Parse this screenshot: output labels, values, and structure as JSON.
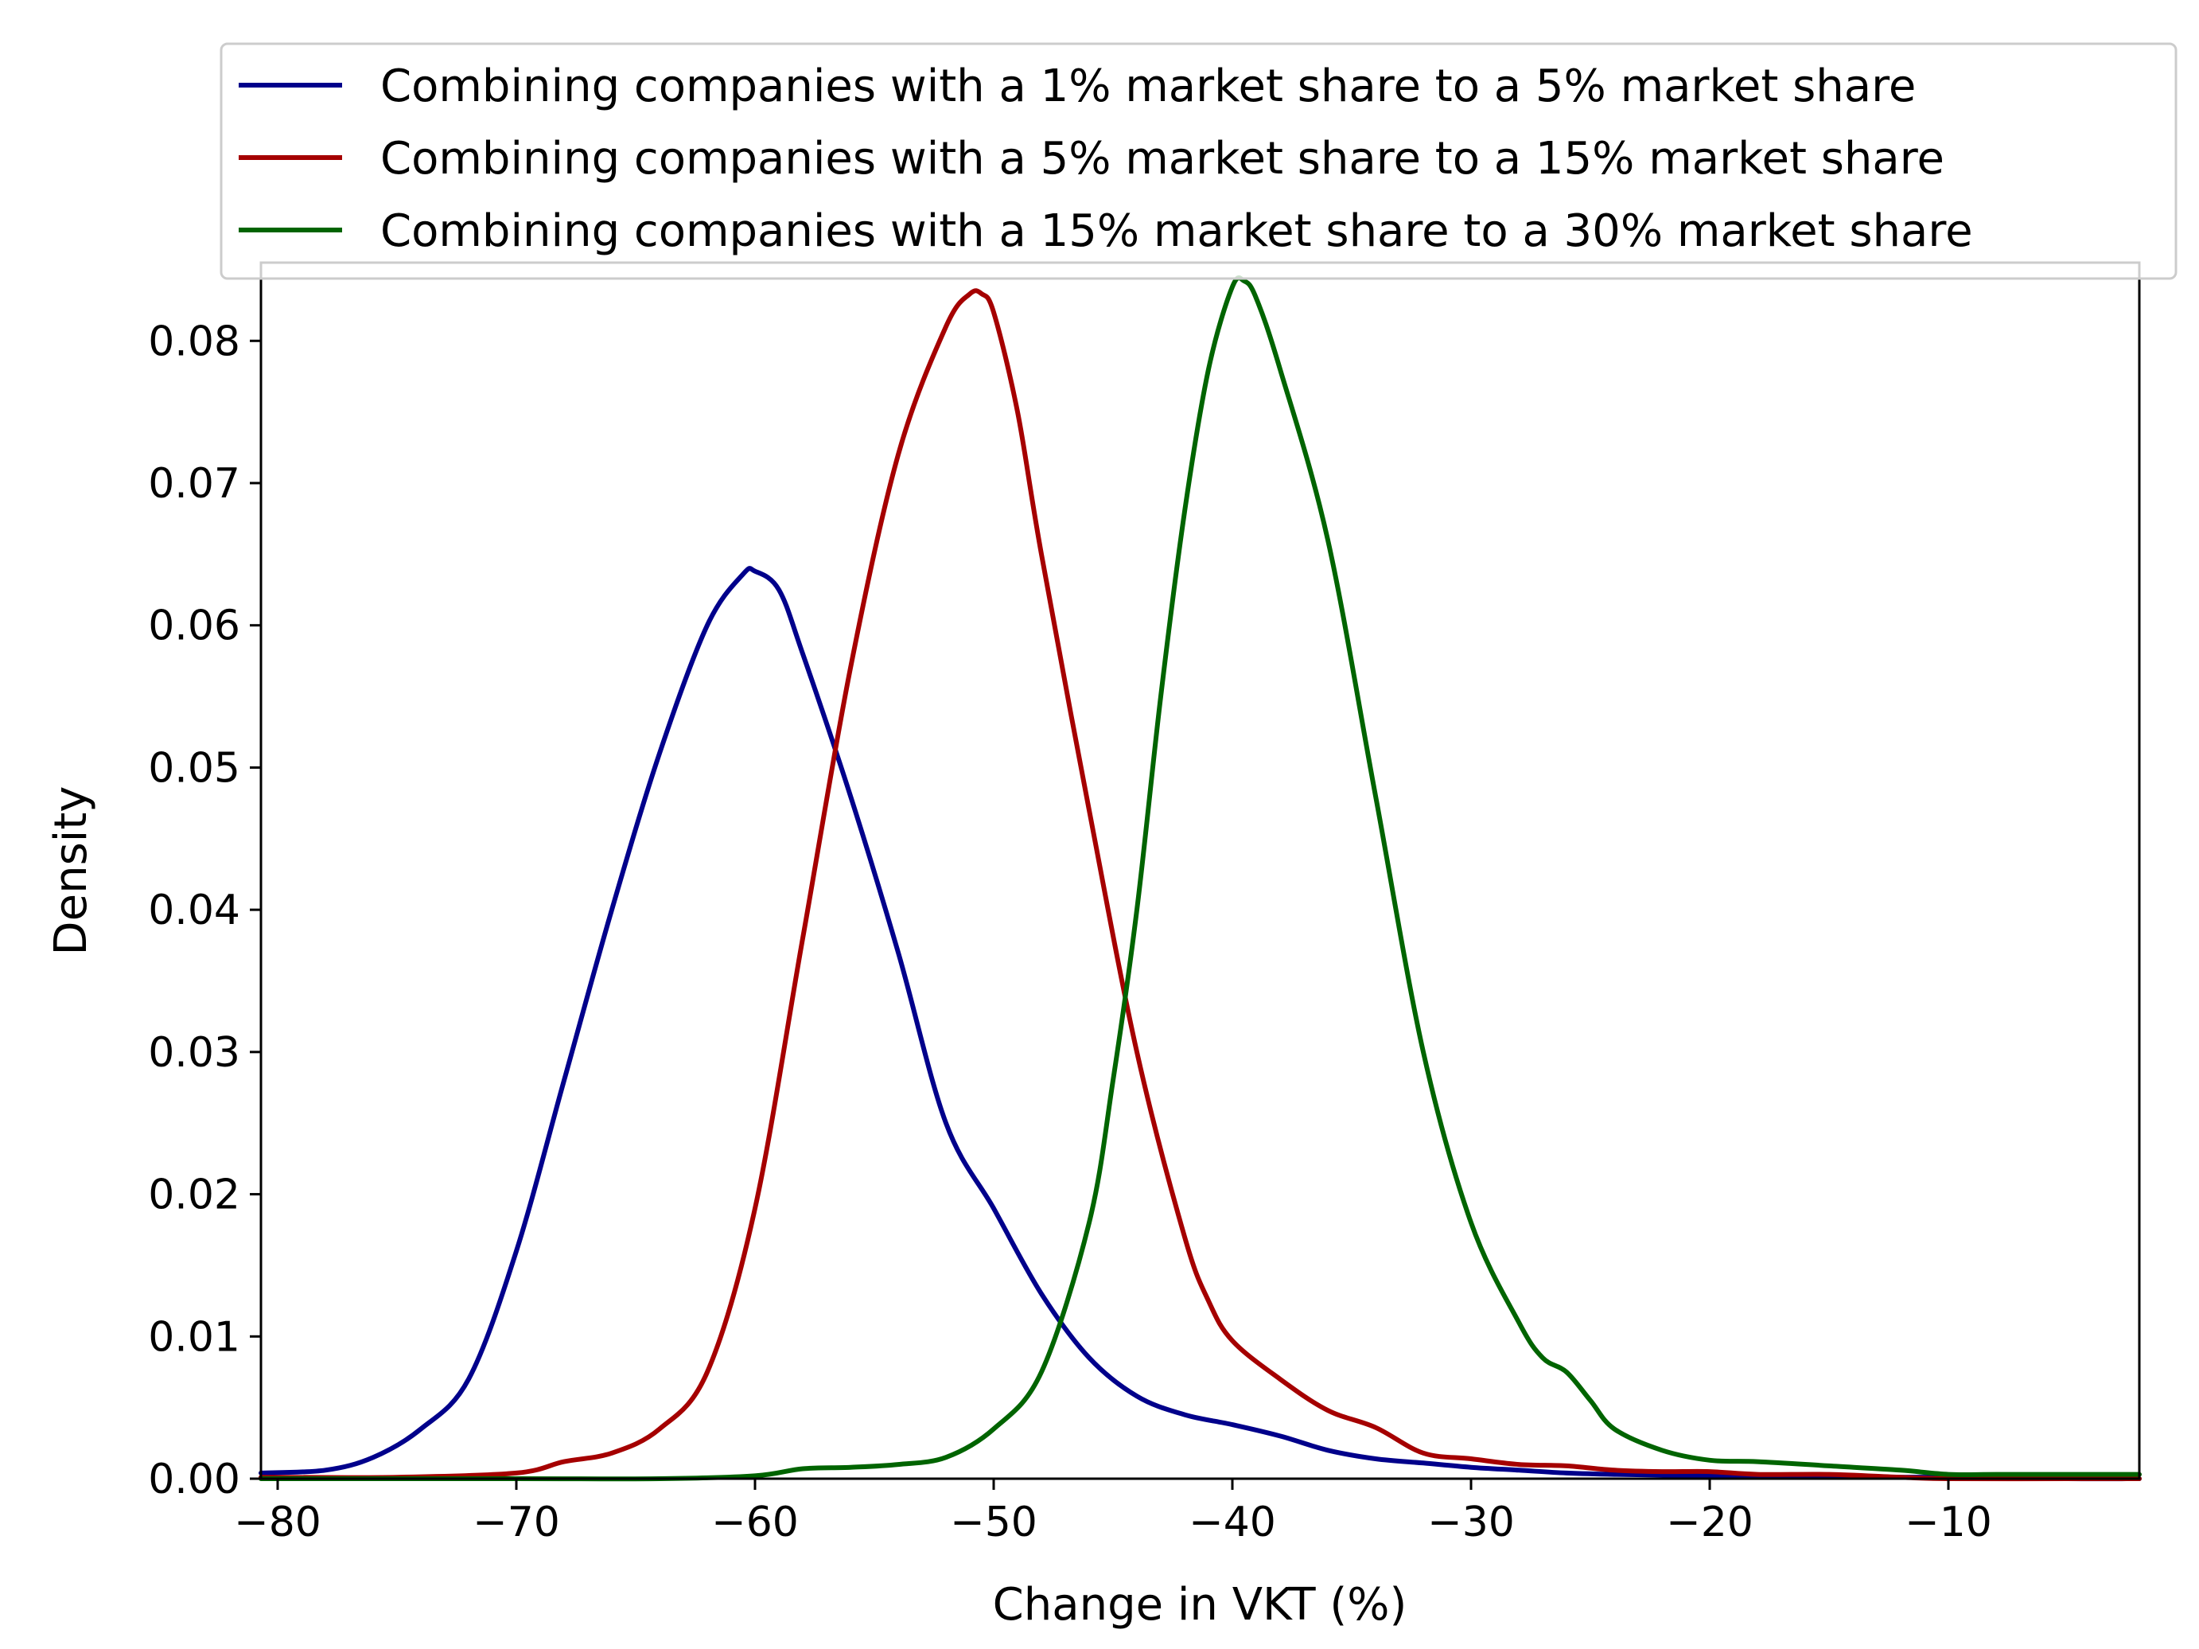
{
  "chart_data": {
    "type": "line",
    "title": "",
    "xlabel": "Change in VKT (%)",
    "ylabel": "Density",
    "xlim": [
      -80.7,
      -2
    ],
    "ylim": [
      0,
      0.0855
    ],
    "xticks": [
      -80,
      -70,
      -60,
      -50,
      -40,
      -30,
      -20,
      -10
    ],
    "xtick_labels": [
      "−80",
      "−70",
      "−60",
      "−50",
      "−40",
      "−30",
      "−20",
      "−10"
    ],
    "yticks": [
      0.0,
      0.01,
      0.02,
      0.03,
      0.04,
      0.05,
      0.06,
      0.07,
      0.08
    ],
    "ytick_labels": [
      "0.00",
      "0.01",
      "0.02",
      "0.03",
      "0.04",
      "0.05",
      "0.06",
      "0.07",
      "0.08"
    ],
    "grid": false,
    "legend_position": "top",
    "series": [
      {
        "name": "Combining companies with a 1% market share to a 5% market share",
        "color": "#00008b",
        "x": [
          -80.7,
          -78,
          -76,
          -74,
          -72,
          -70,
          -68,
          -66,
          -64,
          -62,
          -60.5,
          -60,
          -59,
          -58,
          -56,
          -54,
          -52,
          -50,
          -48,
          -46,
          -44,
          -42,
          -40,
          -38,
          -36,
          -34,
          -32,
          -30,
          -28,
          -26,
          -24,
          -20,
          -15,
          -10,
          -5,
          -2
        ],
        "y": [
          0.0004,
          0.0006,
          0.0015,
          0.0035,
          0.007,
          0.016,
          0.028,
          0.04,
          0.051,
          0.06,
          0.0636,
          0.0638,
          0.0625,
          0.058,
          0.048,
          0.037,
          0.025,
          0.019,
          0.013,
          0.0085,
          0.0058,
          0.0045,
          0.0038,
          0.003,
          0.002,
          0.0014,
          0.0011,
          0.0008,
          0.0006,
          0.0004,
          0.0003,
          0.0002,
          0.0001,
          0.0001,
          0.0,
          0.0
        ]
      },
      {
        "name": "Combining companies with a 5% market share to a 15% market share",
        "color": "#a50000",
        "x": [
          -80.7,
          -75,
          -70,
          -68,
          -66,
          -64,
          -62,
          -60,
          -58,
          -56,
          -54,
          -52,
          -51,
          -50.5,
          -50,
          -49,
          -48,
          -46,
          -44,
          -42,
          -41,
          -40,
          -38,
          -36,
          -34,
          -32,
          -30,
          -28,
          -26,
          -24,
          -22,
          -20,
          -18,
          -15,
          -12,
          -10,
          -5,
          -2
        ],
        "y": [
          0.0001,
          0.0001,
          0.0004,
          0.0012,
          0.0018,
          0.0035,
          0.0075,
          0.019,
          0.038,
          0.057,
          0.072,
          0.081,
          0.0833,
          0.0833,
          0.082,
          0.075,
          0.065,
          0.047,
          0.03,
          0.017,
          0.0125,
          0.0097,
          0.007,
          0.0048,
          0.0036,
          0.0018,
          0.0014,
          0.001,
          0.0009,
          0.0006,
          0.0005,
          0.0005,
          0.0003,
          0.0003,
          0.0001,
          0.0,
          0.0,
          0.0
        ]
      },
      {
        "name": "Combining companies with a 15% market share to a 30% market share",
        "color": "#006400",
        "x": [
          -80.7,
          -70,
          -64,
          -60,
          -58,
          -56,
          -54,
          -52,
          -50,
          -48,
          -46,
          -45,
          -44,
          -43,
          -42,
          -41,
          -40,
          -39.5,
          -39,
          -38,
          -36,
          -34,
          -32,
          -30,
          -28,
          -27,
          -26,
          -25,
          -24,
          -22,
          -20,
          -18,
          -15,
          -12,
          -10,
          -8,
          -5,
          -2
        ],
        "y": [
          0.0,
          0.0,
          0.0,
          0.0002,
          0.0007,
          0.0008,
          0.001,
          0.0015,
          0.0035,
          0.0075,
          0.018,
          0.028,
          0.04,
          0.055,
          0.068,
          0.078,
          0.0838,
          0.0842,
          0.083,
          0.078,
          0.066,
          0.048,
          0.03,
          0.018,
          0.011,
          0.0085,
          0.0075,
          0.0055,
          0.0035,
          0.002,
          0.0013,
          0.0012,
          0.0009,
          0.0006,
          0.0003,
          0.0003,
          0.0003,
          0.0003
        ]
      }
    ]
  }
}
